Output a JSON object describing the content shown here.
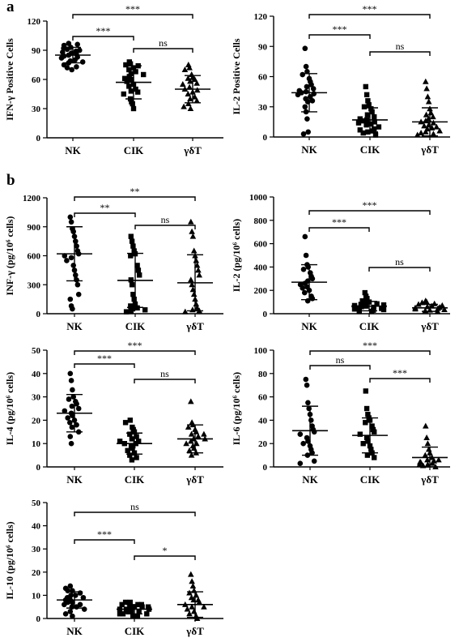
{
  "panel_labels": [
    "a",
    "b"
  ],
  "groups": [
    "NK",
    "CIK",
    "γδT"
  ],
  "chart_data": [
    {
      "type": "scatter",
      "panel": "a",
      "ylabel": "IFN-γ Positive Cells",
      "categories": [
        "NK",
        "CIK",
        "γδT"
      ],
      "ylim": [
        0,
        120
      ],
      "yticks": [
        0,
        30,
        60,
        90,
        120
      ],
      "series": [
        {
          "values": [
            97,
            95,
            93,
            96,
            91,
            90,
            92,
            89,
            87,
            85,
            84,
            86,
            83,
            82,
            88,
            80,
            79,
            78,
            77,
            75,
            73,
            70,
            72
          ]
        },
        {
          "values": [
            78,
            76,
            75,
            74,
            72,
            70,
            68,
            66,
            65,
            63,
            61,
            60,
            58,
            55,
            53,
            50,
            48,
            47,
            45,
            40,
            37,
            35,
            30
          ]
        },
        {
          "values": [
            75,
            72,
            70,
            65,
            62,
            61,
            60,
            58,
            56,
            55,
            52,
            50,
            49,
            47,
            45,
            42,
            40,
            38,
            35,
            32,
            30
          ]
        }
      ],
      "mean": [
        85,
        57,
        50
      ],
      "sd": [
        8,
        17,
        14
      ],
      "comparisons": [
        {
          "from": "NK",
          "to": "CIK",
          "label": "***"
        },
        {
          "from": "CIK",
          "to": "γδT",
          "label": "ns"
        },
        {
          "from": "NK",
          "to": "γδT",
          "label": "***"
        }
      ]
    },
    {
      "type": "scatter",
      "panel": "a",
      "ylabel": "IL-2 Positive Cells",
      "categories": [
        "NK",
        "CIK",
        "γδT"
      ],
      "ylim": [
        0,
        120
      ],
      "yticks": [
        0,
        30,
        60,
        90,
        120
      ],
      "series": [
        {
          "values": [
            88,
            70,
            65,
            62,
            58,
            55,
            52,
            50,
            48,
            46,
            45,
            44,
            43,
            42,
            40,
            38,
            36,
            35,
            30,
            25,
            18,
            5,
            3
          ]
        },
        {
          "values": [
            50,
            42,
            36,
            32,
            30,
            28,
            25,
            22,
            20,
            18,
            17,
            16,
            15,
            14,
            13,
            12,
            10,
            8,
            7,
            6,
            5,
            4,
            2
          ]
        },
        {
          "values": [
            55,
            48,
            40,
            35,
            28,
            24,
            22,
            20,
            18,
            16,
            15,
            14,
            12,
            11,
            10,
            9,
            8,
            6,
            5,
            4,
            3,
            2
          ]
        }
      ],
      "mean": [
        44,
        17,
        15
      ],
      "sd": [
        19,
        12,
        14
      ],
      "comparisons": [
        {
          "from": "NK",
          "to": "CIK",
          "label": "***"
        },
        {
          "from": "CIK",
          "to": "γδT",
          "label": "ns"
        },
        {
          "from": "NK",
          "to": "γδT",
          "label": "***"
        }
      ]
    },
    {
      "type": "scatter",
      "panel": "b",
      "ylabel": "INF-γ  (pg/10⁶ cells)",
      "categories": [
        "NK",
        "CIK",
        "γδT"
      ],
      "ylim": [
        0,
        1200
      ],
      "yticks": [
        0,
        300,
        600,
        900,
        1200
      ],
      "series": [
        {
          "values": [
            1000,
            950,
            880,
            850,
            800,
            750,
            700,
            650,
            620,
            600,
            580,
            550,
            500,
            450,
            400,
            350,
            300,
            200,
            150,
            80,
            50
          ]
        },
        {
          "values": [
            800,
            750,
            700,
            650,
            620,
            600,
            500,
            450,
            400,
            350,
            300,
            200,
            150,
            100,
            80,
            60,
            50,
            40,
            30,
            20
          ]
        },
        {
          "values": [
            950,
            850,
            800,
            650,
            600,
            550,
            500,
            450,
            400,
            350,
            300,
            250,
            200,
            150,
            100,
            60,
            40,
            30,
            20
          ]
        }
      ],
      "mean": [
        620,
        345,
        320
      ],
      "sd": [
        280,
        280,
        290
      ],
      "comparisons": [
        {
          "from": "NK",
          "to": "CIK",
          "label": "**"
        },
        {
          "from": "CIK",
          "to": "γδT",
          "label": "ns"
        },
        {
          "from": "NK",
          "to": "γδT",
          "label": "**"
        }
      ]
    },
    {
      "type": "scatter",
      "panel": "b",
      "ylabel": "IL-2 (pg/10⁶ cells)",
      "categories": [
        "NK",
        "CIK",
        "γδT"
      ],
      "ylim": [
        0,
        1000
      ],
      "yticks": [
        0,
        200,
        400,
        600,
        800,
        1000
      ],
      "series": [
        {
          "values": [
            660,
            500,
            420,
            400,
            380,
            350,
            320,
            300,
            280,
            260,
            250,
            230,
            220,
            200,
            180,
            150,
            130,
            110
          ]
        },
        {
          "values": [
            180,
            150,
            130,
            110,
            100,
            90,
            85,
            80,
            75,
            70,
            65,
            60,
            55,
            50,
            45,
            40,
            35,
            30,
            25,
            20
          ]
        },
        {
          "values": [
            110,
            100,
            95,
            85,
            80,
            70,
            65,
            60,
            55,
            50,
            45,
            40,
            35,
            30,
            25,
            20
          ]
        }
      ],
      "mean": [
        270,
        65,
        50
      ],
      "sd": [
        150,
        40,
        30
      ],
      "comparisons": [
        {
          "from": "NK",
          "to": "CIK",
          "label": "***"
        },
        {
          "from": "CIK",
          "to": "γδT",
          "label": "ns"
        },
        {
          "from": "NK",
          "to": "γδT",
          "label": "***"
        }
      ]
    },
    {
      "type": "scatter",
      "panel": "b",
      "ylabel": "IL-4 (pg/10⁶ cells)",
      "categories": [
        "NK",
        "CIK",
        "γδT"
      ],
      "ylim": [
        0,
        50
      ],
      "yticks": [
        0,
        10,
        20,
        30,
        40,
        50
      ],
      "series": [
        {
          "values": [
            40,
            37,
            33,
            30,
            29,
            28,
            27,
            26,
            25,
            24,
            23,
            22,
            21,
            20,
            19,
            18,
            17,
            15,
            13,
            10
          ]
        },
        {
          "values": [
            20,
            19,
            17,
            16,
            15,
            14,
            13,
            12,
            11,
            10,
            9,
            8,
            7,
            6,
            5,
            4,
            3,
            9,
            10,
            11
          ]
        },
        {
          "values": [
            28,
            19,
            18,
            17,
            16,
            15,
            14,
            13,
            12,
            11,
            10,
            9,
            8,
            7,
            6,
            5,
            14,
            12,
            10
          ]
        }
      ],
      "mean": [
        23,
        10,
        12
      ],
      "sd": [
        8,
        4.5,
        6
      ],
      "comparisons": [
        {
          "from": "NK",
          "to": "CIK",
          "label": "***"
        },
        {
          "from": "CIK",
          "to": "γδT",
          "label": "ns"
        },
        {
          "from": "NK",
          "to": "γδT",
          "label": "***"
        }
      ]
    },
    {
      "type": "scatter",
      "panel": "b",
      "ylabel": "IL-6 (pg/10⁶ cells)",
      "categories": [
        "NK",
        "CIK",
        "γδT"
      ],
      "ylim": [
        0,
        100
      ],
      "yticks": [
        0,
        20,
        40,
        60,
        80,
        100
      ],
      "series": [
        {
          "values": [
            75,
            70,
            55,
            50,
            45,
            40,
            35,
            32,
            30,
            28,
            25,
            22,
            20,
            18,
            15,
            12,
            10,
            5,
            3
          ]
        },
        {
          "values": [
            65,
            50,
            45,
            42,
            40,
            38,
            35,
            32,
            30,
            28,
            25,
            22,
            20,
            18,
            15,
            12,
            10,
            8
          ]
        },
        {
          "values": [
            35,
            25,
            20,
            15,
            12,
            10,
            8,
            6,
            5,
            4,
            3,
            2,
            1,
            0,
            2,
            4,
            6
          ]
        }
      ],
      "mean": [
        31,
        27,
        8
      ],
      "sd": [
        21,
        15,
        9
      ],
      "comparisons": [
        {
          "from": "NK",
          "to": "CIK",
          "label": "ns"
        },
        {
          "from": "CIK",
          "to": "γδT",
          "label": "***"
        },
        {
          "from": "NK",
          "to": "γδT",
          "label": "***"
        }
      ]
    },
    {
      "type": "scatter",
      "panel": "b",
      "ylabel": "IL-10 (pg/10⁶ cells)",
      "categories": [
        "NK",
        "CIK",
        "γδT"
      ],
      "ylim": [
        0,
        50
      ],
      "yticks": [
        0,
        10,
        20,
        30,
        40,
        50
      ],
      "series": [
        {
          "values": [
            14,
            13,
            12,
            12,
            11,
            10,
            10,
            9,
            9,
            8,
            8,
            7,
            7,
            6,
            6,
            5,
            5,
            4,
            3,
            2,
            1
          ]
        },
        {
          "values": [
            7,
            7,
            6,
            6,
            5,
            5,
            5,
            4,
            4,
            4,
            3,
            3,
            3,
            2,
            2,
            2,
            1,
            1,
            6,
            5
          ]
        },
        {
          "values": [
            19,
            16,
            14,
            12,
            11,
            10,
            9,
            8,
            7,
            6,
            5,
            4,
            3,
            2,
            1,
            0,
            5,
            8
          ]
        }
      ],
      "mean": [
        8,
        4,
        6
      ],
      "sd": [
        3.5,
        2,
        5.5
      ],
      "comparisons": [
        {
          "from": "NK",
          "to": "CIK",
          "label": "***"
        },
        {
          "from": "CIK",
          "to": "γδT",
          "label": "*"
        },
        {
          "from": "NK",
          "to": "γδT",
          "label": "ns"
        }
      ]
    }
  ]
}
